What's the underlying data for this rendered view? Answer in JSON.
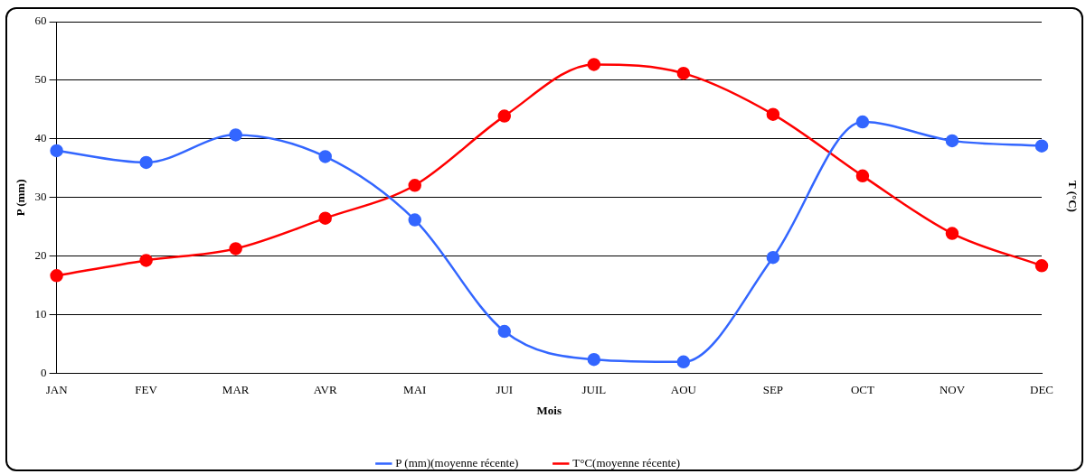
{
  "chart_data": {
    "type": "line",
    "xlabel": "Mois",
    "ylabel": "P (mm)",
    "y2label": "T (°C)",
    "categories": [
      "JAN",
      "FEV",
      "MAR",
      "AVR",
      "MAI",
      "JUI",
      "JUIL",
      "AOU",
      "SEP",
      "OCT",
      "NOV",
      "DEC"
    ],
    "series": [
      {
        "name": "P (mm)(moyenne récente)",
        "color": "#3366ff",
        "values": [
          38,
          36,
          40.7,
          37,
          26.2,
          7.2,
          2.4,
          2,
          19.8,
          42.9,
          39.7,
          38.8
        ]
      },
      {
        "name": "T°C(moyenne récente)",
        "color": "#ff0000",
        "values": [
          16.7,
          19.3,
          21.3,
          26.5,
          32.1,
          43.9,
          52.7,
          51.2,
          44.2,
          33.7,
          23.9,
          18.4
        ]
      }
    ],
    "ylim": [
      0,
      60
    ],
    "yticks": [
      0,
      10,
      20,
      30,
      40,
      50,
      60
    ],
    "grid": "y",
    "legend": "bottom",
    "marker": "circle",
    "line_style": "solid"
  }
}
